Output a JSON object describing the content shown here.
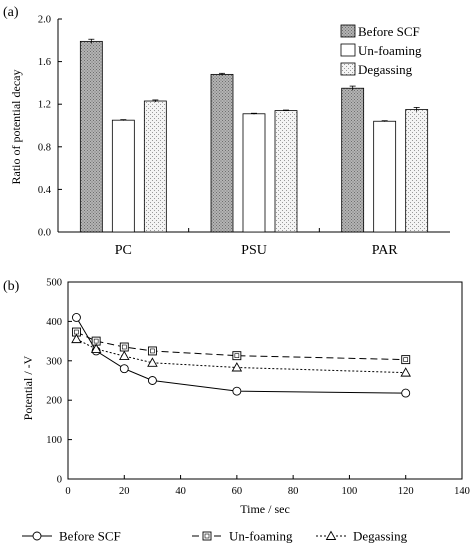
{
  "chart_data": [
    {
      "panel_label": "(a)",
      "type": "bar",
      "title": "",
      "xlabel": "",
      "ylabel": "Ratio of potential decay",
      "categories": [
        "PC",
        "PSU",
        "PAR"
      ],
      "series": [
        {
          "name": "Before SCF",
          "values": [
            1.79,
            1.48,
            1.35
          ],
          "errors": [
            0.02,
            0.01,
            0.02
          ],
          "fill": "#a8a8a8",
          "pattern": "dense-dots"
        },
        {
          "name": "Un-foaming",
          "values": [
            1.05,
            1.11,
            1.04
          ],
          "errors": [
            0.005,
            0.005,
            0.005
          ],
          "fill": "#ffffff",
          "pattern": "none"
        },
        {
          "name": "Degassing",
          "values": [
            1.23,
            1.14,
            1.15
          ],
          "errors": [
            0.01,
            0.005,
            0.02
          ],
          "fill": "#e8e8e8",
          "pattern": "light-dots"
        }
      ],
      "ylim": [
        0,
        2.0
      ],
      "yticks": [
        "0.0",
        "0.4",
        "0.8",
        "1.2",
        "1.6",
        "2.0"
      ],
      "legend_position": "top-right",
      "grid": false
    },
    {
      "panel_label": "(b)",
      "type": "line",
      "title": "",
      "xlabel": "Time / sec",
      "ylabel": "Potential / -V",
      "x": [
        3,
        10,
        20,
        30,
        60,
        120
      ],
      "series": [
        {
          "name": "Before SCF",
          "values": [
            410,
            325,
            280,
            250,
            223,
            218
          ],
          "marker": "circle",
          "line": "solid"
        },
        {
          "name": "Un-foaming",
          "values": [
            373,
            350,
            335,
            325,
            313,
            303
          ],
          "marker": "square",
          "line": "dashed"
        },
        {
          "name": "Degassing",
          "values": [
            355,
            330,
            312,
            295,
            283,
            270
          ],
          "marker": "triangle",
          "line": "dotted"
        }
      ],
      "xlim": [
        0,
        140
      ],
      "ylim": [
        0,
        500
      ],
      "xticks": [
        "0",
        "20",
        "40",
        "60",
        "80",
        "100",
        "120",
        "140"
      ],
      "yticks": [
        "0",
        "100",
        "200",
        "300",
        "400",
        "500"
      ],
      "legend_position": "bottom",
      "grid": false
    }
  ]
}
